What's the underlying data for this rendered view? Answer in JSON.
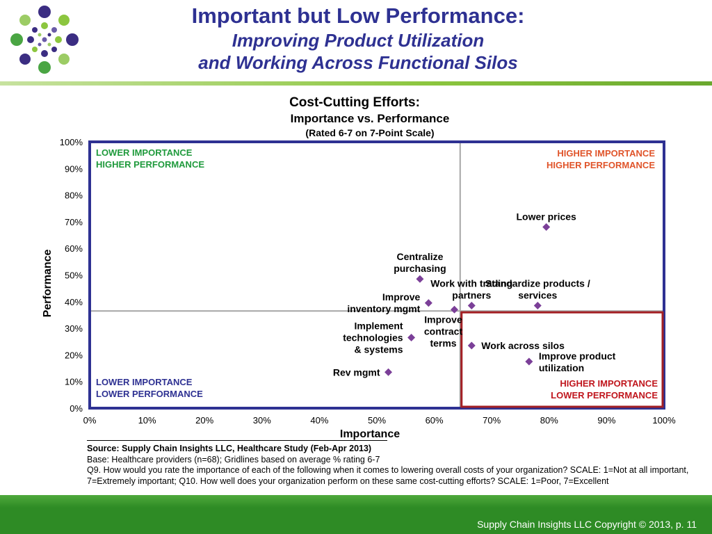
{
  "slide": {
    "title_line1": "Important but Low Performance:",
    "title_line2": "Improving Product Utilization",
    "title_line3": "and Working Across Functional Silos"
  },
  "notes": {
    "source": "Source:  Supply Chain Insights LLC, Healthcare Study (Feb-Apr 2013)",
    "base": "Base:  Healthcare providers (n=68);  Gridlines based on average % rating 6-7",
    "question": "Q9. How would you rate the importance of each of the following when it comes to lowering overall costs of your organization? SCALE:  1=Not at all important, 7=Extremely important; Q10. How well does your organization perform on these same cost-cutting efforts? SCALE: 1=Poor, 7=Excellent"
  },
  "footer": {
    "copyright": "Supply Chain Insights LLC Copyright © 2013, p. 11"
  },
  "colors": {
    "title": "#2e3192",
    "frame": "#2e3192",
    "marker": "#7b3f98",
    "highlight": "#a31f24",
    "q_top_left": "#1f9a3c",
    "q_top_right": "#e0542a",
    "q_bottom_left": "#2e3192",
    "q_bottom_right": "#c0161d",
    "footer": "#2e8b25"
  },
  "chart_data": {
    "type": "scatter",
    "title": "Cost-Cutting Efforts:",
    "subtitle": "Importance vs. Performance",
    "subtitle2": "(Rated 6-7 on 7-Point Scale)",
    "xlabel": "Importance",
    "ylabel": "Performance",
    "xlim": [
      0,
      100
    ],
    "ylim": [
      0,
      100
    ],
    "x_ticks": [
      "0%",
      "10%",
      "20%",
      "30%",
      "40%",
      "50%",
      "60%",
      "70%",
      "80%",
      "90%",
      "100%"
    ],
    "y_ticks": [
      "0%",
      "10%",
      "20%",
      "30%",
      "40%",
      "50%",
      "60%",
      "70%",
      "80%",
      "90%",
      "100%"
    ],
    "grid": false,
    "reference_lines": {
      "x": 64.5,
      "y": 36.5
    },
    "quadrants": {
      "top_left": [
        "LOWER IMPORTANCE",
        "HIGHER  PERFORMANCE"
      ],
      "top_right": [
        "HIGHER  IMPORTANCE",
        "HIGHER  PERFORMANCE"
      ],
      "bottom_left": [
        "LOWER IMPORTANCE",
        "LOWER PERFORMANCE"
      ],
      "bottom_right": [
        "HIGHER  IMPORTANCE",
        "LOWER PERFORMANCE"
      ]
    },
    "points": [
      {
        "label": [
          "Lower prices"
        ],
        "x": 79.5,
        "y": 68,
        "anchor": "middle"
      },
      {
        "label": [
          "Centralize",
          "purchasing"
        ],
        "x": 57.5,
        "y": 48.5,
        "anchor": "middle"
      },
      {
        "label": [
          "Work with trading",
          "partners"
        ],
        "x": 66.5,
        "y": 38.5,
        "anchor": "middle"
      },
      {
        "label": [
          "Standardize  products  /",
          "services"
        ],
        "x": 78,
        "y": 38.5,
        "anchor": "middle"
      },
      {
        "label": [
          "Improve",
          "inventory  mgmt"
        ],
        "x": 59,
        "y": 39.5,
        "anchor": "end"
      },
      {
        "label": [
          "Improve",
          "contract",
          "terms"
        ],
        "x": 63.5,
        "y": 37,
        "anchor": "middle"
      },
      {
        "label": [
          "Implement",
          "technologies",
          "& systems"
        ],
        "x": 56,
        "y": 26.5,
        "anchor": "end"
      },
      {
        "label": [
          "Work across silos"
        ],
        "x": 66.5,
        "y": 23.5,
        "anchor": "start"
      },
      {
        "label": [
          "Improve  product",
          "utilization"
        ],
        "x": 76.5,
        "y": 17.5,
        "anchor": "start"
      },
      {
        "label": [
          "Rev mgmt"
        ],
        "x": 52,
        "y": 13.5,
        "anchor": "end"
      }
    ],
    "highlight_region": {
      "x": [
        64.5,
        100
      ],
      "y": [
        0,
        36.5
      ]
    }
  }
}
